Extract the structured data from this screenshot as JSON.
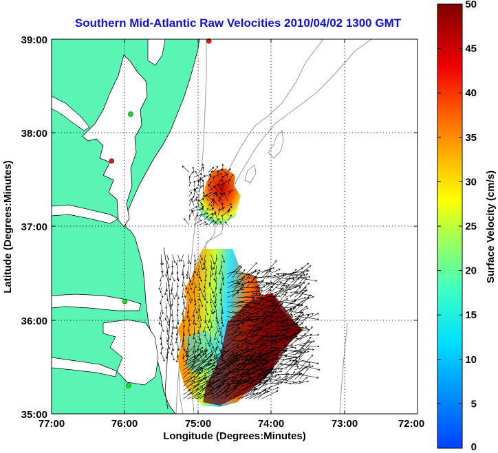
{
  "title": "Southern Mid-Atlantic Raw Velocities 2010/04/02 1300 GMT",
  "x_axis": {
    "label": "Longitude (Degrees:Minutes)",
    "ticks": [
      "77:00",
      "76:00",
      "75:00",
      "74:00",
      "73:00",
      "72:00"
    ]
  },
  "y_axis": {
    "label": "Latitude (Degrees:Minutes)",
    "ticks": [
      "39:00",
      "38:00",
      "37:00",
      "36:00",
      "35:00"
    ]
  },
  "colorbar": {
    "label": "Surface Velocity (cm/s)",
    "ticks": [
      "50",
      "45",
      "40",
      "35",
      "30",
      "25",
      "20",
      "15",
      "10",
      "5",
      "0"
    ],
    "min": 0,
    "max": 50
  },
  "colors": {
    "land": "#5af5b4",
    "coastline": "#000000",
    "bathymetry": "#9a9a9a",
    "title": "#1010e0",
    "station_green": "#22dd22",
    "station_red": "#ee1111"
  },
  "chart_data": {
    "type": "heatmap",
    "lon_range": [
      -77,
      -72
    ],
    "lat_range": [
      35,
      39
    ],
    "grid": true,
    "stations": [
      {
        "lon": -74.85,
        "lat": 38.98,
        "status": "red"
      },
      {
        "lon": -75.92,
        "lat": 38.2,
        "status": "green"
      },
      {
        "lon": -76.18,
        "lat": 37.7,
        "status": "red"
      },
      {
        "lon": -76.0,
        "lat": 36.2,
        "status": "green"
      },
      {
        "lon": -75.95,
        "lat": 35.3,
        "status": "green"
      }
    ],
    "velocity_regions": [
      {
        "name": "north-patch",
        "lon": [
          -75.12,
          -74.58
        ],
        "lat": [
          37.0,
          37.58
        ],
        "speed_range": [
          10,
          50
        ]
      },
      {
        "name": "south-patch",
        "lon": [
          -75.5,
          -73.85
        ],
        "lat": [
          35.12,
          36.72
        ],
        "speed_range": [
          8,
          50
        ]
      }
    ]
  }
}
